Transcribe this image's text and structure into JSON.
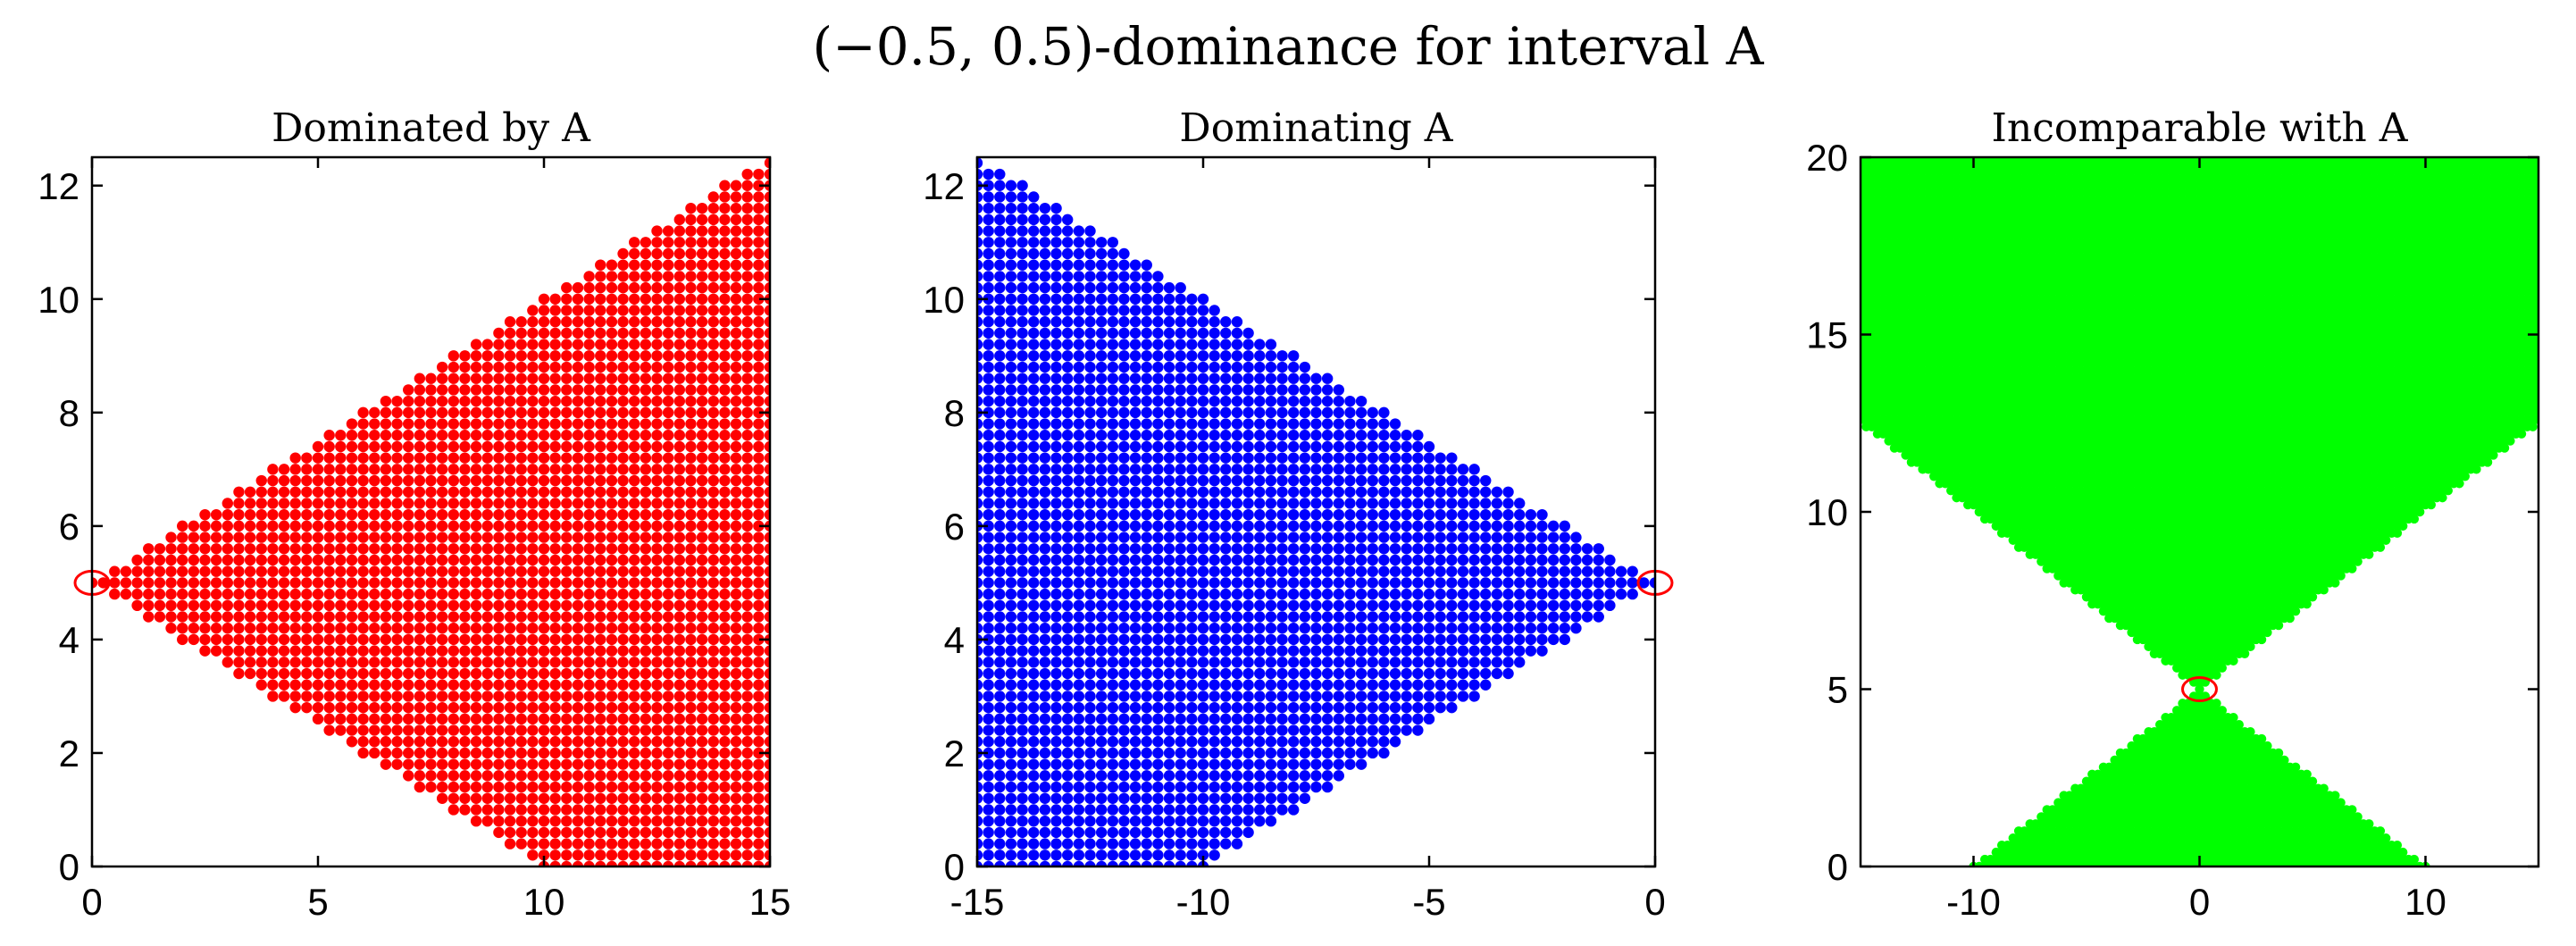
{
  "figure": {
    "suptitle": "(−0.5, 0.5)-dominance for interval A"
  },
  "chart_data": [
    {
      "type": "scatter",
      "title": "Dominated by A",
      "xlabel": "",
      "ylabel": "",
      "xlim": [
        0,
        15
      ],
      "ylim": [
        0,
        12.5
      ],
      "xticks": [
        0,
        5,
        10,
        15
      ],
      "yticks": [
        0,
        2,
        4,
        6,
        8,
        10,
        12
      ],
      "xtick_labels": [
        "0",
        "5",
        "10",
        "15"
      ],
      "ytick_labels": [
        "0",
        "2",
        "4",
        "6",
        "8",
        "10",
        "12"
      ],
      "grid": false,
      "series": [
        {
          "color": "#ff0000",
          "marker": "dot",
          "region": "triangle with apex at (0, 5), bounded by y = 5 + 0.5x and y = 5 - 0.5x, x from 0 to 15",
          "x_step": 0.25,
          "y_step": 0.2,
          "apex": [
            0,
            5
          ],
          "x_range": [
            0,
            15
          ],
          "slope": 0.5
        },
        {
          "color": "#ff0000",
          "marker": "open-circle",
          "x": [
            0
          ],
          "y": [
            5
          ]
        }
      ]
    },
    {
      "type": "scatter",
      "title": "Dominating A",
      "xlabel": "",
      "ylabel": "",
      "xlim": [
        -15,
        0
      ],
      "ylim": [
        0,
        12.5
      ],
      "xticks": [
        -15,
        -10,
        -5,
        0
      ],
      "yticks": [
        0,
        2,
        4,
        6,
        8,
        10,
        12
      ],
      "xtick_labels": [
        "-15",
        "-10",
        "-5",
        "0"
      ],
      "ytick_labels": [
        "0",
        "2",
        "4",
        "6",
        "8",
        "10",
        "12"
      ],
      "grid": false,
      "series": [
        {
          "color": "#0000ff",
          "marker": "dot",
          "region": "triangle with apex at (0, 5), bounded by y = 5 - 0.5x and y = 5 + 0.5x, x from -15 to 0",
          "x_step": 0.25,
          "y_step": 0.2,
          "apex": [
            0,
            5
          ],
          "x_range": [
            -15,
            0
          ],
          "slope": 0.5
        },
        {
          "color": "#ff0000",
          "marker": "open-circle",
          "x": [
            0
          ],
          "y": [
            5
          ]
        }
      ]
    },
    {
      "type": "scatter",
      "title": "Incomparable with A",
      "xlabel": "",
      "ylabel": "",
      "xlim": [
        -15,
        15
      ],
      "ylim": [
        0,
        20
      ],
      "xticks": [
        -10,
        0,
        10
      ],
      "yticks": [
        0,
        5,
        10,
        15,
        20
      ],
      "xtick_labels": [
        "-10",
        "0",
        "10"
      ],
      "ytick_labels": [
        "0",
        "5",
        "10",
        "15",
        "20"
      ],
      "grid": false,
      "series": [
        {
          "color": "#00ff00",
          "marker": "dot",
          "region": "complement of double cone |y - 5| >= 0.5|x|, i.e. points with |y - 5| < 0.5|x| excluded; filled hourglass shape above and below apex (0, 5), y from 0 to 20, x from -15 to 15",
          "x_step": 0.25,
          "y_step": 0.2,
          "apex": [
            0,
            5
          ],
          "x_range": [
            -15,
            15
          ],
          "slope": 0.5
        },
        {
          "color": "#ff0000",
          "marker": "open-circle",
          "x": [
            0
          ],
          "y": [
            5
          ]
        }
      ]
    }
  ]
}
